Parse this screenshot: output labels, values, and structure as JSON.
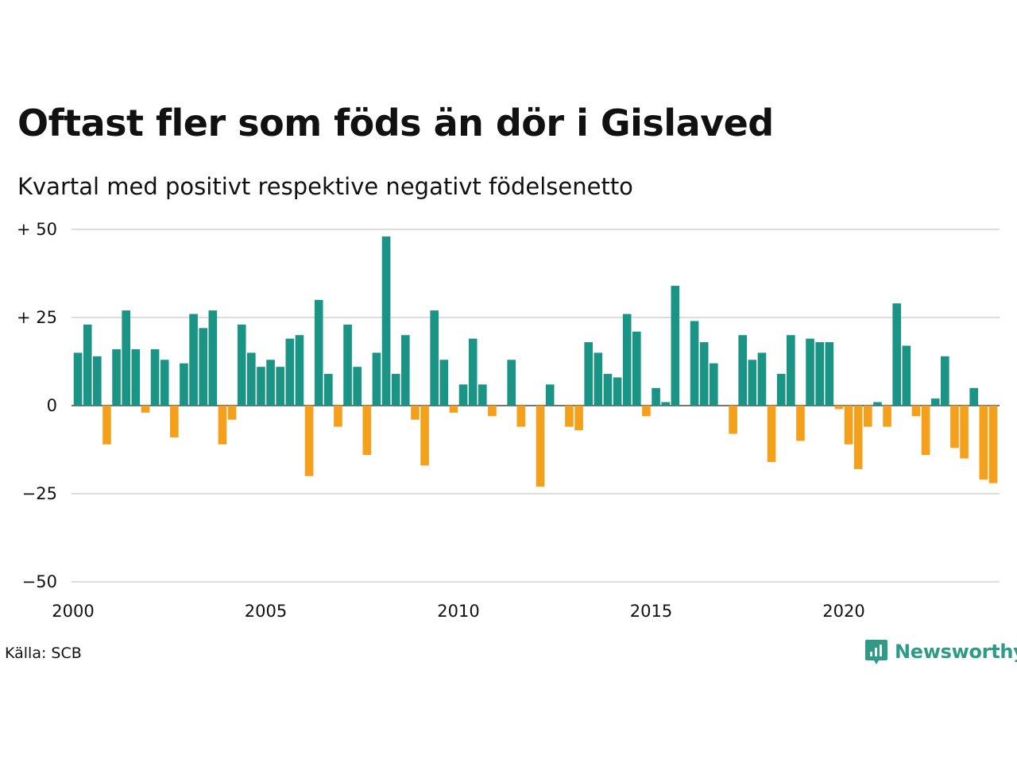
{
  "title": "Oftast fler som föds än dör i Gislaved",
  "subtitle": "Kvartal med positivt respektive negativt födelsenetto",
  "source": "Källa: SCB",
  "logo": {
    "text": "Newsworthy",
    "icon": "newsworthy-chart-icon"
  },
  "colors": {
    "positive": "#1a9485",
    "negative": "#f5a01a",
    "grid": "#dddddd",
    "brand": "#2f9a86"
  },
  "chart_data": {
    "type": "bar",
    "x_unit": "quarter",
    "x_start": "2000 Q1",
    "x_end": "2023 Q4",
    "ylim": [
      -50,
      50
    ],
    "y_ticks": [
      {
        "value": 50,
        "label": "+ 50"
      },
      {
        "value": 25,
        "label": "+ 25"
      },
      {
        "value": 0,
        "label": "0"
      },
      {
        "value": -25,
        "label": "−25"
      },
      {
        "value": -50,
        "label": "−50"
      }
    ],
    "x_ticks": [
      {
        "year": 2000,
        "label": "2000"
      },
      {
        "year": 2005,
        "label": "2005"
      },
      {
        "year": 2010,
        "label": "2010"
      },
      {
        "year": 2015,
        "label": "2015"
      },
      {
        "year": 2020,
        "label": "2020"
      }
    ],
    "grid": true,
    "legend": "none",
    "values": [
      15,
      23,
      14,
      -11,
      16,
      27,
      16,
      -2,
      16,
      13,
      -9,
      12,
      26,
      22,
      27,
      -11,
      -4,
      23,
      15,
      11,
      13,
      11,
      19,
      20,
      -20,
      30,
      9,
      -6,
      23,
      11,
      -14,
      15,
      48,
      9,
      20,
      -4,
      -17,
      27,
      13,
      -2,
      6,
      19,
      6,
      -3,
      0,
      13,
      -6,
      0,
      -23,
      6,
      0,
      -6,
      -7,
      18,
      15,
      9,
      8,
      26,
      21,
      -3,
      5,
      1,
      34,
      0,
      24,
      18,
      12,
      0,
      -8,
      20,
      13,
      15,
      -16,
      9,
      20,
      -10,
      19,
      18,
      18,
      -1,
      -11,
      -18,
      -6,
      1,
      -6,
      29,
      17,
      -3,
      -14,
      2,
      14,
      -12,
      -15,
      5,
      -21,
      -22
    ]
  }
}
